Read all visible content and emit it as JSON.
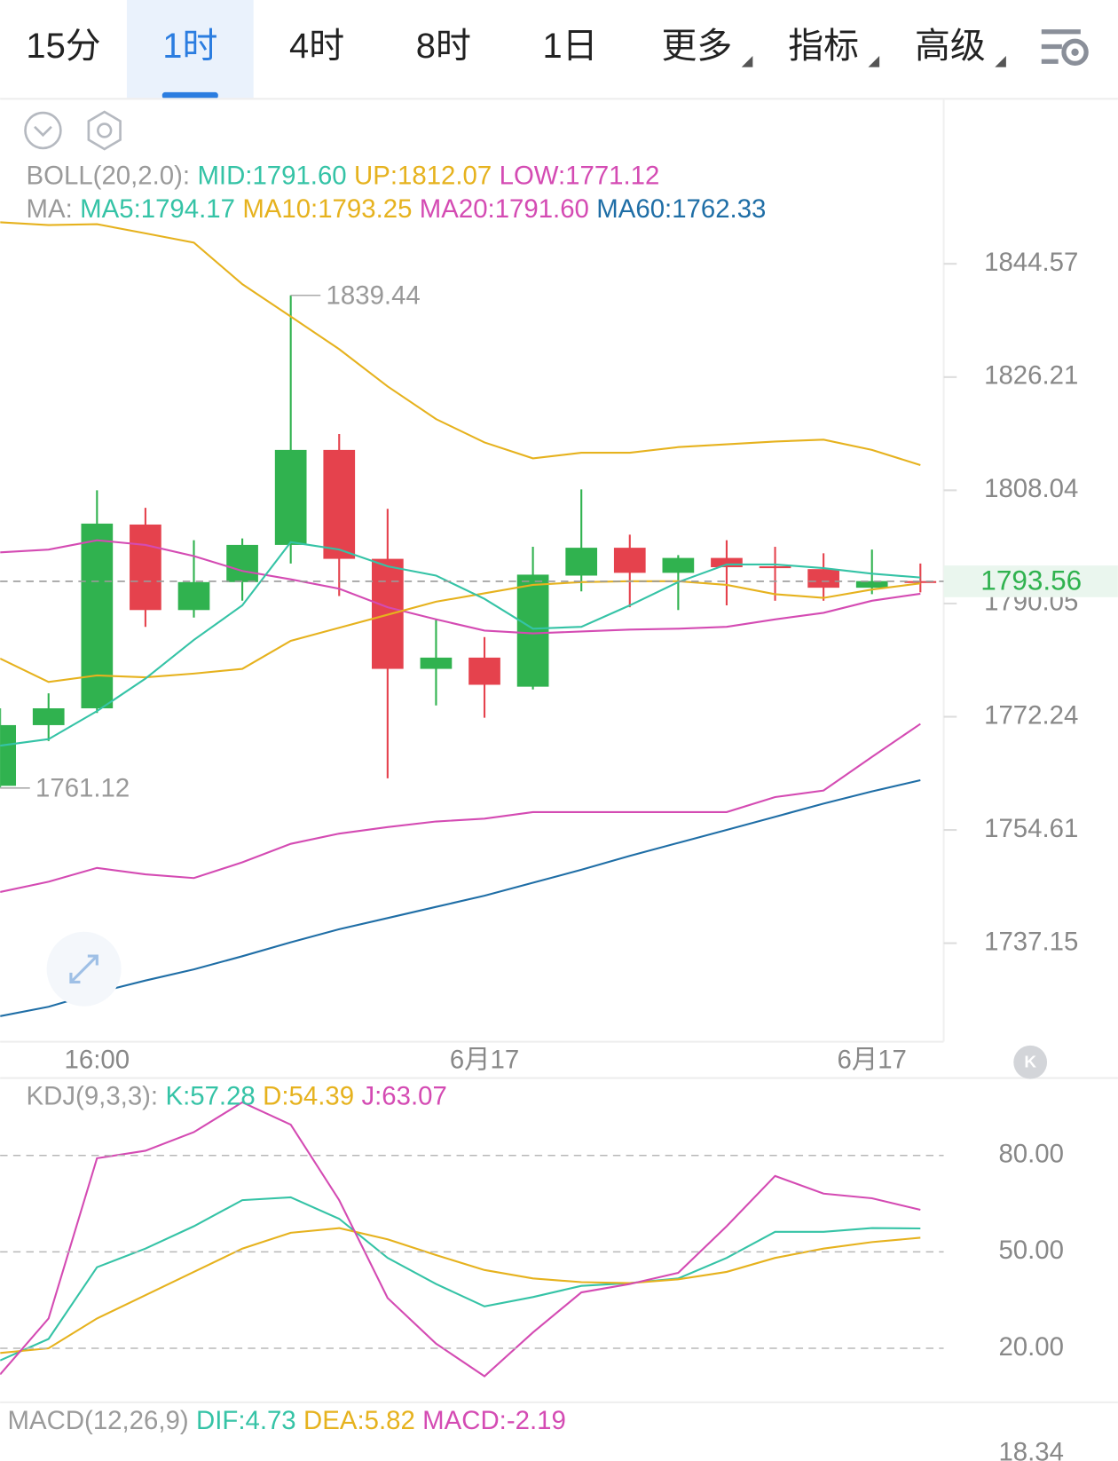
{
  "tabs": [
    {
      "label": "15分",
      "active": false,
      "dropdown": false
    },
    {
      "label": "1时",
      "active": true,
      "dropdown": false
    },
    {
      "label": "4时",
      "active": false,
      "dropdown": false
    },
    {
      "label": "8时",
      "active": false,
      "dropdown": false
    },
    {
      "label": "1日",
      "active": false,
      "dropdown": false
    },
    {
      "label": "更多",
      "active": false,
      "dropdown": true
    },
    {
      "label": "指标",
      "active": false,
      "dropdown": true
    },
    {
      "label": "高级",
      "active": false,
      "dropdown": true
    }
  ],
  "chart_data": [
    {
      "type": "candlestick",
      "legend_rows": [
        {
          "title": "BOLL(20,2.0):",
          "items": [
            {
              "label": "MID:1791.60",
              "color": "#35c3a6"
            },
            {
              "label": "UP:1812.07",
              "color": "#e6b21e"
            },
            {
              "label": "LOW:1771.12",
              "color": "#d44bb3"
            }
          ]
        },
        {
          "title": "MA:",
          "items": [
            {
              "label": "MA5:1794.17",
              "color": "#35c3a6"
            },
            {
              "label": "MA10:1793.25",
              "color": "#e6b21e"
            },
            {
              "label": "MA20:1791.60",
              "color": "#d44bb3"
            },
            {
              "label": "MA60:1762.33",
              "color": "#1f6ea6"
            }
          ]
        }
      ],
      "categories": [
        null,
        null,
        "16:00",
        null,
        null,
        null,
        null,
        null,
        null,
        null,
        "6月17",
        null,
        null,
        null,
        null,
        null,
        null,
        null,
        "6月17",
        null
      ],
      "open": [
        1761.46,
        1770.93,
        1773.56,
        1802.58,
        1789.02,
        1793.44,
        1799.34,
        1814.5,
        1797.13,
        1779.75,
        1781.52,
        1776.95,
        1794.47,
        1798.89,
        1794.91,
        1797.27,
        1795.95,
        1795.5,
        1792.55,
        1793.6
      ],
      "high": [
        1773.56,
        1775.9,
        1808.04,
        1805.24,
        1800.08,
        1800.37,
        1839.44,
        1817.05,
        1805.09,
        1787.55,
        1784.75,
        1799.04,
        1808.19,
        1800.96,
        1797.72,
        1800.08,
        1799.04,
        1798.01,
        1798.6,
        1796.39
      ],
      "low": [
        1761.12,
        1768.45,
        1772.83,
        1786.37,
        1787.84,
        1790.49,
        1796.39,
        1791.23,
        1762.62,
        1774.01,
        1772.09,
        1776.51,
        1791.97,
        1789.46,
        1789.02,
        1789.76,
        1790.49,
        1790.49,
        1791.53,
        1791.82
      ],
      "close": [
        1770.93,
        1773.56,
        1802.73,
        1789.02,
        1793.44,
        1799.34,
        1814.5,
        1797.13,
        1779.75,
        1781.52,
        1777.25,
        1794.62,
        1798.89,
        1794.91,
        1797.27,
        1795.8,
        1795.65,
        1792.55,
        1793.6,
        1793.56
      ],
      "up_color": "#30b24f",
      "down_color": "#e5424d",
      "series": [
        {
          "color": "#1f6ea6",
          "values": [
            1725.99,
            1727.42,
            1729.57,
            1731.43,
            1733.14,
            1735.15,
            1737.29,
            1739.3,
            1741.01,
            1742.73,
            1744.45,
            1746.45,
            1748.45,
            1750.6,
            1752.61,
            1754.61,
            1756.65,
            1758.69,
            1760.59,
            1762.33
          ]
        },
        {
          "color": "#d44bb3",
          "values": [
            1745.02,
            1746.6,
            1748.74,
            1747.74,
            1747.17,
            1749.6,
            1752.46,
            1754.04,
            1755.05,
            1755.92,
            1756.36,
            1757.38,
            1757.38,
            1757.38,
            1757.38,
            1757.38,
            1759.71,
            1760.73,
            1765.97,
            1771.12
          ]
        },
        {
          "color": "#e6b21e",
          "values": [
            1851.34,
            1850.89,
            1851.04,
            1849.54,
            1848.03,
            1841.26,
            1836.0,
            1830.72,
            1824.71,
            1819.45,
            1815.7,
            1813.15,
            1814.05,
            1814.05,
            1814.95,
            1815.4,
            1815.85,
            1816.15,
            1814.5,
            1812.07
          ]
        },
        {
          "color": "#d44bb3",
          "values": [
            1798.16,
            1798.6,
            1800.08,
            1799.34,
            1797.57,
            1795.21,
            1793.88,
            1792.4,
            1789.46,
            1787.55,
            1785.78,
            1785.34,
            1785.63,
            1785.93,
            1786.08,
            1786.37,
            1787.55,
            1788.58,
            1790.49,
            1791.6
          ]
        },
        {
          "color": "#e6b21e",
          "values": [
            1781.37,
            1777.69,
            1778.72,
            1778.42,
            1779.01,
            1779.75,
            1784.16,
            1786.22,
            1788.28,
            1790.34,
            1791.67,
            1793.0,
            1793.44,
            1793.58,
            1793.58,
            1793.0,
            1791.53,
            1790.94,
            1792.26,
            1793.25
          ]
        },
        {
          "color": "#35c3a6",
          "values": [
            1767.72,
            1768.74,
            1773.12,
            1778.22,
            1784.31,
            1789.76,
            1799.78,
            1798.6,
            1795.95,
            1794.47,
            1790.79,
            1786.08,
            1786.37,
            1789.76,
            1793.44,
            1796.24,
            1796.24,
            1795.65,
            1794.77,
            1794.17
          ]
        }
      ],
      "log_scale": true,
      "ylim": [
        1722.1,
        1871.5
      ],
      "yticks": [
        1844.57,
        1826.21,
        1808.04,
        1790.05,
        1772.24,
        1754.61,
        1737.15
      ],
      "max_label": 1839.44,
      "min_label": 1761.12,
      "last_price": 1793.56
    },
    {
      "type": "line",
      "legend_rows": [
        {
          "title": "KDJ(9,3,3):",
          "items": [
            {
              "label": "K:57.28",
              "color": "#35c3a6"
            },
            {
              "label": "D:54.39",
              "color": "#e6b21e"
            },
            {
              "label": "J:63.07",
              "color": "#d44bb3"
            }
          ]
        }
      ],
      "series": [
        {
          "color": "#35c3a6",
          "values": [
            16.23,
            22.9,
            45.22,
            51.01,
            57.97,
            66.09,
            66.96,
            60.29,
            48.12,
            40.0,
            33.04,
            35.94,
            39.42,
            40.29,
            41.74,
            48.12,
            56.23,
            56.23,
            57.39,
            57.28
          ]
        },
        {
          "color": "#e6b21e",
          "values": [
            18.55,
            20.0,
            29.28,
            36.52,
            43.77,
            51.01,
            55.94,
            57.39,
            53.91,
            48.99,
            44.35,
            41.74,
            40.58,
            40.29,
            41.45,
            43.77,
            48.12,
            51.01,
            53.04,
            54.39
          ]
        },
        {
          "color": "#d44bb3",
          "values": [
            11.88,
            29.28,
            79.13,
            81.45,
            87.25,
            96.52,
            89.57,
            66.09,
            35.65,
            21.45,
            11.3,
            24.93,
            37.39,
            40.0,
            43.48,
            57.97,
            73.62,
            68.12,
            66.67,
            63.07
          ]
        }
      ],
      "ylim": [
        3.2,
        103.2
      ],
      "yticks": [
        {
          "value": 80,
          "label": "80.00"
        },
        {
          "value": 50,
          "label": "50.00"
        },
        {
          "value": 20,
          "label": "20.00"
        }
      ],
      "grid": true
    }
  ],
  "macd": {
    "legend_rows": [
      {
        "title": "MACD(12,26,9)",
        "items": [
          {
            "label": "DIF:4.73",
            "color": "#35c3a6"
          },
          {
            "label": "DEA:5.82",
            "color": "#e6b21e"
          },
          {
            "label": "MACD:-2.19",
            "color": "#d44bb3"
          }
        ]
      }
    ],
    "top_tick": 18.34
  }
}
